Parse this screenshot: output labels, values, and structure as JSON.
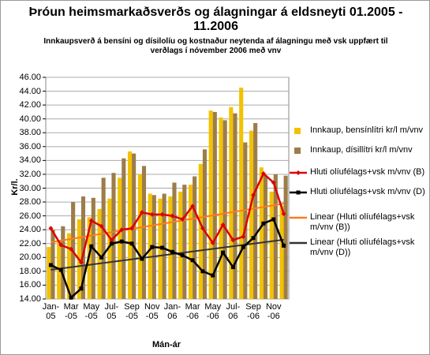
{
  "chart_data": {
    "type": "bar",
    "title": "Þróun heimsmarkaðsverðs og álagningar á eldsneyti  01.2005 - 11.2006",
    "subtitle": "Innkaupsverð á bensíni og dísilolíu og kostnaður neytenda af álagningu með vsk uppfært til verðlags í nóvember 2006 með vnv",
    "y_label": "Kr/l.",
    "x_label": "Mán-ár",
    "categories": [
      "Jan-05",
      null,
      "Mar-05",
      null,
      "May-05",
      null,
      "Jul-05",
      null,
      "Sep-05",
      null,
      "Nov-05",
      null,
      "Jan-06",
      null,
      "Mar-06",
      null,
      "May-06",
      null,
      "Jul-06",
      null,
      "Sep-06",
      null,
      "Nov-06",
      null
    ],
    "ylim": [
      14,
      46
    ],
    "yticks": [
      {
        "value": 14,
        "label": "14.00"
      },
      {
        "value": 16,
        "label": "16.00"
      },
      {
        "value": 18,
        "label": "18.00"
      },
      {
        "value": 20,
        "label": "20.00"
      },
      {
        "value": 22,
        "label": "22.00"
      },
      {
        "value": 24,
        "label": "24.00"
      },
      {
        "value": 26,
        "label": "26.00"
      },
      {
        "value": 28,
        "label": "28.00"
      },
      {
        "value": 30,
        "label": "30.00"
      },
      {
        "value": 32,
        "label": "32.00"
      },
      {
        "value": 34,
        "label": "34.00"
      },
      {
        "value": 36,
        "label": "36.00"
      },
      {
        "value": 38,
        "label": "38.00"
      },
      {
        "value": 40,
        "label": "40.00"
      },
      {
        "value": 42,
        "label": "42.00"
      },
      {
        "value": 44,
        "label": "44.00"
      },
      {
        "value": 46,
        "label": "46.00"
      }
    ],
    "grid": true,
    "series": [
      {
        "name": "Innkaup, bensínlítri kr/l m/vnv",
        "kind": "bar",
        "color": "#f2c200",
        "values": [
          21.5,
          22.5,
          23.5,
          25.5,
          25.8,
          27.0,
          28.5,
          31.5,
          35.3,
          32.0,
          29.2,
          28.5,
          28.8,
          29.5,
          30.5,
          33.5,
          41.2,
          40.2,
          41.7,
          44.5,
          38.3,
          33.0,
          29.5,
          27.5
        ]
      },
      {
        "name": "Innkaup, dísillítri kr/l m/vnv",
        "kind": "bar",
        "color": "#9c7d4a",
        "values": [
          24.0,
          24.5,
          28.0,
          28.8,
          28.6,
          31.5,
          32.2,
          34.3,
          35.0,
          33.2,
          29.0,
          29.2,
          30.8,
          30.5,
          31.7,
          35.6,
          41.0,
          39.8,
          40.8,
          36.6,
          39.4,
          31.8,
          32.0,
          31.8
        ]
      },
      {
        "name": "Hluti olíufélags+vsk m/vnv (B)",
        "kind": "line",
        "marker": "diamond",
        "color": "#dd0000",
        "values": [
          24.2,
          21.8,
          21.2,
          19.3,
          25.3,
          24.5,
          22.5,
          24.0,
          24.2,
          26.5,
          26.2,
          26.2,
          26.0,
          25.5,
          27.4,
          24.2,
          22.1,
          24.7,
          22.5,
          23.0,
          29.0,
          32.1,
          30.8,
          26.3
        ]
      },
      {
        "name": "Hluti olíufélags+vsk m/vnv (D)",
        "kind": "line",
        "marker": "square",
        "color": "#000000",
        "values": [
          18.9,
          18.2,
          14.2,
          15.5,
          21.6,
          20.0,
          22.0,
          22.3,
          22.0,
          19.8,
          21.5,
          21.4,
          20.8,
          20.3,
          19.6,
          18.0,
          17.4,
          20.7,
          18.6,
          21.5,
          22.8,
          24.9,
          25.5,
          21.7
        ]
      },
      {
        "name": "Linear (Hluti olíufélags+vsk m/vnv (B))",
        "kind": "trend",
        "of": 2,
        "color": "#ff7a1a"
      },
      {
        "name": "Linear (Hluti olíufélags+vsk m/vnv (D))",
        "kind": "trend",
        "of": 3,
        "color": "#333333"
      }
    ]
  }
}
